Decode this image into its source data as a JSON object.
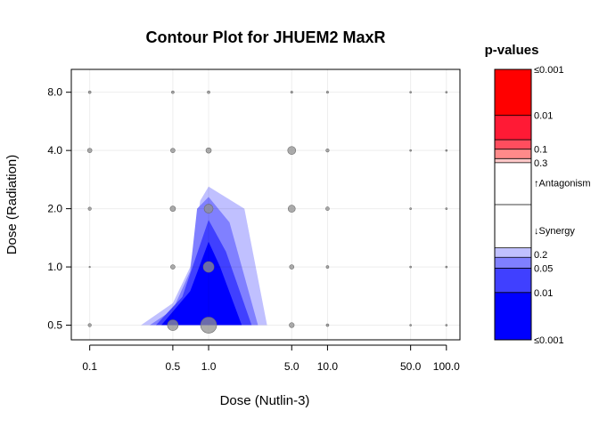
{
  "chart_data": {
    "type": "contour",
    "title": "Contour Plot for JHUEM2 MaxR",
    "xlabel": "Dose (Nutlin-3)",
    "ylabel": "Dose (Radiation)",
    "x_scale": "log",
    "y_scale": "log",
    "x_ticks": [
      0.1,
      0.5,
      1.0,
      5.0,
      10.0,
      50.0,
      100.0
    ],
    "x_tick_labels": [
      "0.1",
      "0.5",
      "1.0",
      "5.0",
      "10.0",
      "50.0",
      "100.0"
    ],
    "y_ticks": [
      0.5,
      1.0,
      2.0,
      4.0,
      8.0
    ],
    "y_tick_labels": [
      "0.5",
      "1.0",
      "2.0",
      "4.0",
      "8.0"
    ],
    "xlim": [
      0.07,
      130
    ],
    "ylim": [
      0.42,
      10.5
    ],
    "grid": true,
    "contour_levels": [
      {
        "level": "0.2",
        "color": "#c0c0ff",
        "polygon": [
          [
            0.27,
            0.5
          ],
          [
            0.5,
            0.65
          ],
          [
            0.7,
            1.0
          ],
          [
            0.85,
            2.2
          ],
          [
            1.0,
            2.6
          ],
          [
            2.0,
            2.0
          ],
          [
            3.1,
            0.5
          ]
        ]
      },
      {
        "level": "0.05",
        "color": "#8080ff",
        "polygon": [
          [
            0.32,
            0.5
          ],
          [
            0.5,
            0.6
          ],
          [
            0.7,
            0.95
          ],
          [
            0.8,
            2.0
          ],
          [
            1.0,
            2.3
          ],
          [
            1.5,
            1.7
          ],
          [
            2.6,
            0.5
          ]
        ]
      },
      {
        "level": "0.01",
        "color": "#4040ff",
        "polygon": [
          [
            0.36,
            0.5
          ],
          [
            0.6,
            0.7
          ],
          [
            1.0,
            1.75
          ],
          [
            1.4,
            1.2
          ],
          [
            2.3,
            0.5
          ]
        ]
      },
      {
        "level": "≤0.001",
        "color": "#0000ff",
        "polygon": [
          [
            0.4,
            0.5
          ],
          [
            0.7,
            0.75
          ],
          [
            1.0,
            1.35
          ],
          [
            1.25,
            1.0
          ],
          [
            1.9,
            0.5
          ]
        ]
      }
    ],
    "points": [
      {
        "x": 0.1,
        "y": 8.0,
        "r": 1.5
      },
      {
        "x": 0.5,
        "y": 8.0,
        "r": 1.5
      },
      {
        "x": 1.0,
        "y": 8.0,
        "r": 1.5
      },
      {
        "x": 5.0,
        "y": 8.0,
        "r": 1.2
      },
      {
        "x": 10.0,
        "y": 8.0,
        "r": 1.2
      },
      {
        "x": 50.0,
        "y": 8.0,
        "r": 1
      },
      {
        "x": 100.0,
        "y": 8.0,
        "r": 1
      },
      {
        "x": 0.1,
        "y": 4.0,
        "r": 2.5
      },
      {
        "x": 0.5,
        "y": 4.0,
        "r": 2.5
      },
      {
        "x": 1.0,
        "y": 4.0,
        "r": 3
      },
      {
        "x": 5.0,
        "y": 4.0,
        "r": 4.5
      },
      {
        "x": 10.0,
        "y": 4.0,
        "r": 1.8
      },
      {
        "x": 50.0,
        "y": 4.0,
        "r": 1
      },
      {
        "x": 100.0,
        "y": 4.0,
        "r": 1
      },
      {
        "x": 0.1,
        "y": 2.0,
        "r": 1.8
      },
      {
        "x": 0.5,
        "y": 2.0,
        "r": 3
      },
      {
        "x": 1.0,
        "y": 2.0,
        "r": 5
      },
      {
        "x": 5.0,
        "y": 2.0,
        "r": 4
      },
      {
        "x": 10.0,
        "y": 2.0,
        "r": 2
      },
      {
        "x": 50.0,
        "y": 2.0,
        "r": 1
      },
      {
        "x": 100.0,
        "y": 2.0,
        "r": 1
      },
      {
        "x": 0.1,
        "y": 1.0,
        "r": 0.8
      },
      {
        "x": 0.5,
        "y": 1.0,
        "r": 2.5
      },
      {
        "x": 1.0,
        "y": 1.0,
        "r": 6
      },
      {
        "x": 5.0,
        "y": 1.0,
        "r": 2.5
      },
      {
        "x": 10.0,
        "y": 1.0,
        "r": 1.5
      },
      {
        "x": 50.0,
        "y": 1.0,
        "r": 1
      },
      {
        "x": 100.0,
        "y": 1.0,
        "r": 1
      },
      {
        "x": 0.1,
        "y": 0.5,
        "r": 1.8
      },
      {
        "x": 0.5,
        "y": 0.5,
        "r": 6
      },
      {
        "x": 1.0,
        "y": 0.5,
        "r": 9
      },
      {
        "x": 5.0,
        "y": 0.5,
        "r": 2.8
      },
      {
        "x": 10.0,
        "y": 0.5,
        "r": 1.5
      },
      {
        "x": 50.0,
        "y": 0.5,
        "r": 1
      },
      {
        "x": 100.0,
        "y": 0.5,
        "r": 1
      }
    ],
    "point_color": "#909090",
    "colorbar": {
      "title": "p-values",
      "bands": [
        {
          "color": "#ff0000",
          "from": 0,
          "to": 0.17
        },
        {
          "color": "#ff1a35",
          "from": 0.17,
          "to": 0.26
        },
        {
          "color": "#ff4d5e",
          "from": 0.26,
          "to": 0.295
        },
        {
          "color": "#ff8a8a",
          "from": 0.295,
          "to": 0.33
        },
        {
          "color": "#ffc7c7",
          "from": 0.33,
          "to": 0.345
        },
        {
          "color": "#ffffff",
          "from": 0.345,
          "to": 0.66
        },
        {
          "color": "#c0c0ff",
          "from": 0.66,
          "to": 0.695
        },
        {
          "color": "#8080ff",
          "from": 0.695,
          "to": 0.735
        },
        {
          "color": "#4040ff",
          "from": 0.735,
          "to": 0.825
        },
        {
          "color": "#0000ff",
          "from": 0.825,
          "to": 1.0
        }
      ],
      "labels": [
        {
          "text": "≤0.001",
          "pos": 0.0
        },
        {
          "text": "0.01",
          "pos": 0.17
        },
        {
          "text": "0.1",
          "pos": 0.295
        },
        {
          "text": "0.3",
          "pos": 0.345
        },
        {
          "text": "↑Antagonism",
          "pos": 0.42
        },
        {
          "text": "↓Synergy",
          "pos": 0.595
        },
        {
          "text": "0.2",
          "pos": 0.685
        },
        {
          "text": "0.05",
          "pos": 0.735
        },
        {
          "text": "0.01",
          "pos": 0.825
        },
        {
          "text": "≤0.001",
          "pos": 1.0
        }
      ],
      "ticks": [
        0.0,
        0.17,
        0.26,
        0.295,
        0.33,
        0.345,
        0.5,
        0.66,
        0.695,
        0.735,
        0.825,
        1.0
      ]
    }
  }
}
